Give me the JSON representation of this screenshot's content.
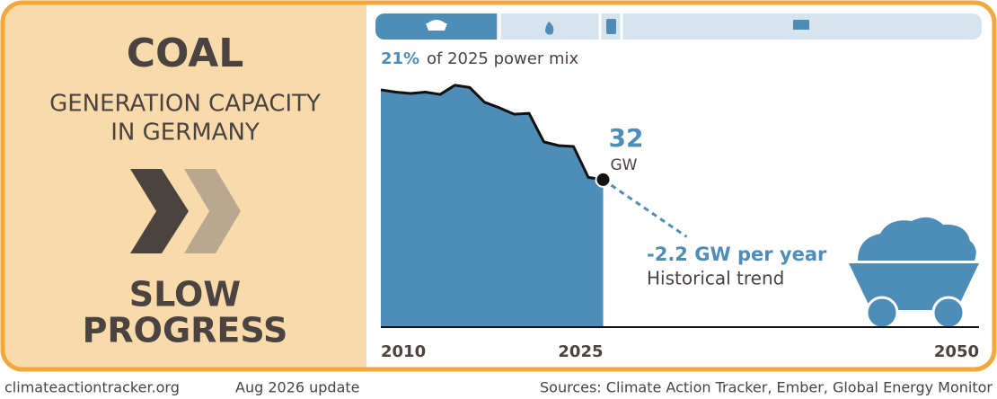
{
  "panel": {
    "title": "COAL",
    "subtitle": [
      "GENERATION CAPACITY",
      "IN GERMANY"
    ],
    "status": [
      "SLOW",
      "PROGRESS"
    ]
  },
  "chart_data": {
    "type": "area",
    "share": "21%",
    "share_text": "of 2025 power mix",
    "x": [
      2010,
      2011,
      2012,
      2013,
      2014,
      2015,
      2016,
      2017,
      2018,
      2019,
      2020,
      2021,
      2022,
      2023,
      2024,
      2025
    ],
    "values": [
      51.5,
      51,
      50.7,
      51,
      50.5,
      52.5,
      52,
      48.8,
      47.6,
      46.2,
      46.4,
      40.2,
      39.4,
      39.2,
      32.5,
      32
    ],
    "unit": "GW",
    "color": "#4e8db8",
    "xlim": [
      2010,
      2050
    ],
    "xticks": [
      2010,
      2025,
      2050
    ],
    "ylim": [
      0,
      55
    ],
    "trend": {
      "slope": -2.2,
      "label": "-2.2 GW per year",
      "caption": "Historical trend"
    }
  },
  "footer": {
    "site": "climateactiontracker.org",
    "update": "Aug 2026 update",
    "sources": "Sources: Climate Action Tracker, Ember, Global Energy Monitor"
  }
}
